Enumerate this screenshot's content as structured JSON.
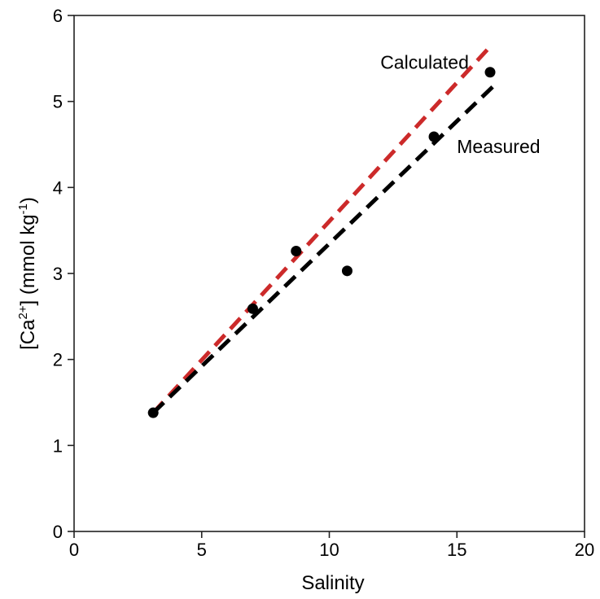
{
  "chart_data": {
    "type": "scatter",
    "title": "",
    "xlabel": "Salinity",
    "ylabel": {
      "prefix": "[Ca",
      "sup": "2+",
      "middle": "] (mmol kg",
      "sup2": "-1",
      "suffix": ")"
    },
    "xlim": [
      0,
      20
    ],
    "ylim": [
      0,
      6
    ],
    "xticks": [
      0,
      5,
      10,
      15,
      20
    ],
    "yticks": [
      0,
      1,
      2,
      3,
      4,
      5,
      6
    ],
    "xtick_labels": [
      "0",
      "5",
      "10",
      "15",
      "20"
    ],
    "ytick_labels": [
      "0",
      "1",
      "2",
      "3",
      "4",
      "5",
      "6"
    ],
    "grid": false,
    "points": {
      "color": "#000000",
      "x": [
        3.1,
        7.0,
        8.7,
        10.7,
        14.1,
        16.3
      ],
      "y": [
        1.38,
        2.59,
        3.26,
        3.03,
        4.59,
        5.34
      ]
    },
    "lines": [
      {
        "name": "Calculated",
        "color": "#cc2a2a",
        "style": "dashed",
        "x": [
          3.1,
          16.4
        ],
        "y": [
          1.38,
          5.67
        ]
      },
      {
        "name": "Measured",
        "color": "#000000",
        "style": "dashed",
        "x": [
          3.1,
          16.4
        ],
        "y": [
          1.38,
          5.17
        ]
      }
    ],
    "annotations": [
      {
        "text": "Calculated",
        "x": 12.0,
        "y": 5.38
      },
      {
        "text": "Measured",
        "x": 15.0,
        "y": 4.4
      }
    ]
  }
}
